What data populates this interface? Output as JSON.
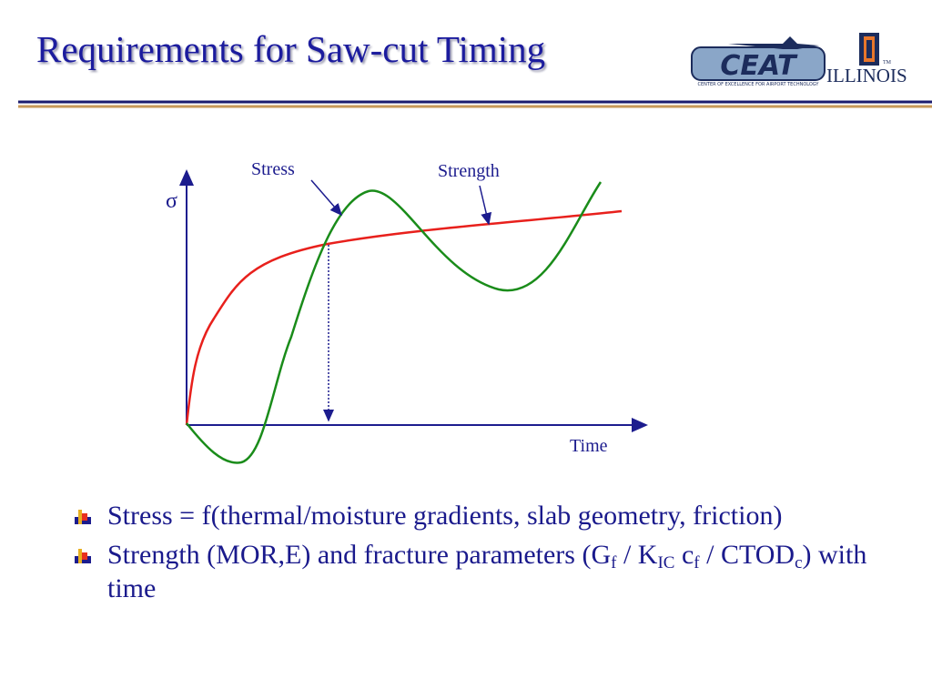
{
  "header": {
    "title": "Requirements for Saw-cut Timing",
    "logo": {
      "mark": "CEAT",
      "caption": "CENTER OF EXCELLENCE FOR AIRPORT TECHNOLOGY",
      "university": "ILLINOIS",
      "tm": "TM"
    }
  },
  "diagram": {
    "y_label": "σ",
    "stress_label": "Stress",
    "strength_label": "Strength",
    "x_label": "Time"
  },
  "bullets": [
    {
      "segments": [
        {
          "text": "Stress = f(thermal/moisture gradients, slab geometry, friction)",
          "sub": false
        }
      ]
    },
    {
      "segments": [
        {
          "text": "Strength (MOR,E) and fracture parameters (G",
          "sub": false
        },
        {
          "text": "f",
          "sub": true
        },
        {
          "text": " / K",
          "sub": false
        },
        {
          "text": "IC",
          "sub": true
        },
        {
          "text": " c",
          "sub": false
        },
        {
          "text": "f",
          "sub": true
        },
        {
          "text": " / CTOD",
          "sub": false
        },
        {
          "text": "c",
          "sub": true
        },
        {
          "text": ") with time",
          "sub": false
        }
      ]
    }
  ]
}
